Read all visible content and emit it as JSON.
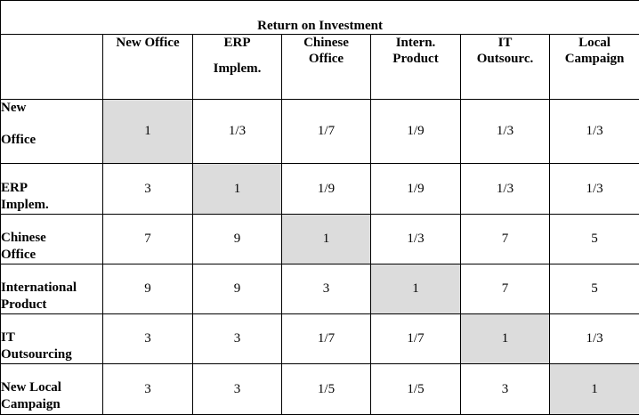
{
  "title": "Return on Investment",
  "columns": [
    {
      "line1": "New Office",
      "line2": ""
    },
    {
      "line1": "ERP",
      "line2": "Implem."
    },
    {
      "line1": "Chinese",
      "line2": "Office"
    },
    {
      "line1": "Intern.",
      "line2": "Product"
    },
    {
      "line1": "IT",
      "line2": "Outsourc."
    },
    {
      "line1": "Local",
      "line2": "Campaign"
    }
  ],
  "rows": [
    {
      "line1": "New",
      "line2": "Office",
      "values": [
        "1",
        "1/3",
        "1/7",
        "1/9",
        "1/3",
        "1/3"
      ]
    },
    {
      "line1": "ERP",
      "line2": "Implem.",
      "values": [
        "3",
        "1",
        "1/9",
        "1/9",
        "1/3",
        "1/3"
      ]
    },
    {
      "line1": "Chinese",
      "line2": "Office",
      "values": [
        "7",
        "9",
        "1",
        "1/3",
        "7",
        "5"
      ]
    },
    {
      "line1": "International",
      "line2": "Product",
      "values": [
        "9",
        "9",
        "3",
        "1",
        "7",
        "5"
      ]
    },
    {
      "line1": "IT",
      "line2": "Outsourcing",
      "values": [
        "3",
        "3",
        "1/7",
        "1/7",
        "1",
        "1/3"
      ]
    },
    {
      "line1": "New Local",
      "line2": "Campaign",
      "values": [
        "3",
        "3",
        "1/5",
        "1/5",
        "3",
        "1"
      ]
    }
  ],
  "colors": {
    "diagonal": "#dcdcdc",
    "border": "#000000"
  }
}
